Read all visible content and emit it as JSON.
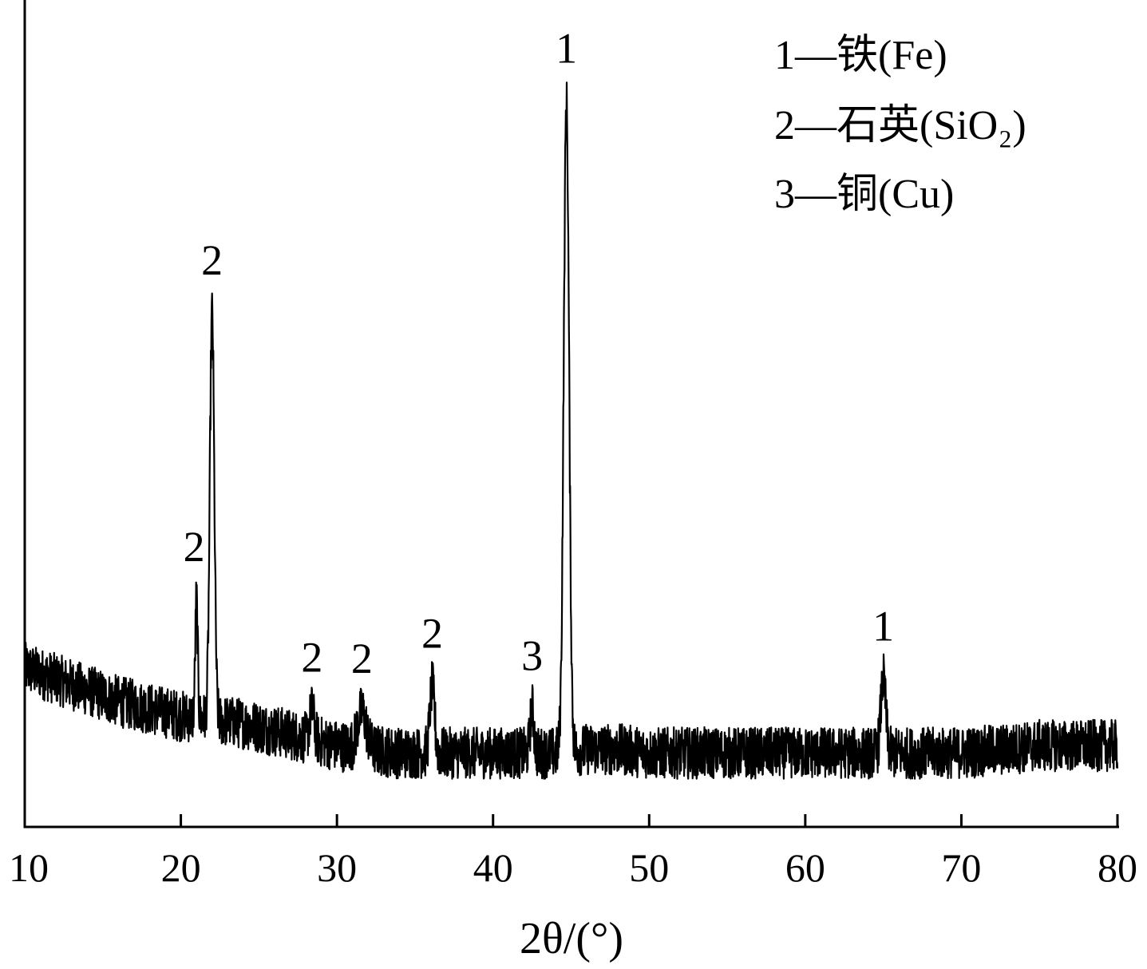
{
  "chart_data": {
    "type": "line",
    "xlabel": "2θ/(°)",
    "ylabel": "",
    "xlim": [
      10,
      80
    ],
    "ylim": [
      0,
      100
    ],
    "x_ticks": [
      "10",
      "20",
      "30",
      "40",
      "50",
      "60",
      "70",
      "80"
    ],
    "grid": false,
    "legend_position": "top-right",
    "legend": [
      {
        "marker": "1",
        "text": "1—铁(Fe)"
      },
      {
        "marker": "2",
        "text": "2—石英(SiO₂)"
      },
      {
        "marker": "3",
        "text": "3—铜(Cu)"
      }
    ],
    "baseline": [
      [
        10,
        21.5
      ],
      [
        12,
        20
      ],
      [
        14,
        18.5
      ],
      [
        16,
        17
      ],
      [
        18,
        16
      ],
      [
        20,
        15
      ],
      [
        22,
        14.5
      ],
      [
        24,
        14
      ],
      [
        26,
        13
      ],
      [
        28,
        12
      ],
      [
        30,
        11
      ],
      [
        32,
        10.5
      ],
      [
        34,
        10
      ],
      [
        36,
        10
      ],
      [
        38,
        10
      ],
      [
        40,
        10
      ],
      [
        42,
        10
      ],
      [
        44,
        10
      ],
      [
        46,
        10.5
      ],
      [
        48,
        10.5
      ],
      [
        50,
        10
      ],
      [
        55,
        10
      ],
      [
        60,
        10
      ],
      [
        65,
        10
      ],
      [
        70,
        10
      ],
      [
        73,
        10.5
      ],
      [
        75,
        11
      ],
      [
        80,
        11
      ]
    ],
    "peaks": [
      {
        "x": 21.0,
        "height": 16,
        "width": 0.08,
        "phase": "2"
      },
      {
        "x": 22.0,
        "height": 55,
        "width": 0.14,
        "phase": "2"
      },
      {
        "x": 28.4,
        "height": 4,
        "width": 0.15,
        "phase": "2"
      },
      {
        "x": 31.6,
        "height": 5,
        "width": 0.28,
        "phase": "2"
      },
      {
        "x": 36.1,
        "height": 9,
        "width": 0.15,
        "phase": "2"
      },
      {
        "x": 42.5,
        "height": 6,
        "width": 0.12,
        "phase": "3"
      },
      {
        "x": 44.7,
        "height": 88,
        "width": 0.17,
        "phase": "1"
      },
      {
        "x": 65.0,
        "height": 10,
        "width": 0.16,
        "phase": "1"
      }
    ],
    "noise_amplitude": 3.5,
    "peak_labels": [
      {
        "x": 21.0,
        "text": "2"
      },
      {
        "x": 22.0,
        "text": "2"
      },
      {
        "x": 28.4,
        "text": "2"
      },
      {
        "x": 31.6,
        "text": "2"
      },
      {
        "x": 36.1,
        "text": "2"
      },
      {
        "x": 42.5,
        "text": "3"
      },
      {
        "x": 44.7,
        "text": "1"
      },
      {
        "x": 65.0,
        "text": "1"
      }
    ]
  }
}
